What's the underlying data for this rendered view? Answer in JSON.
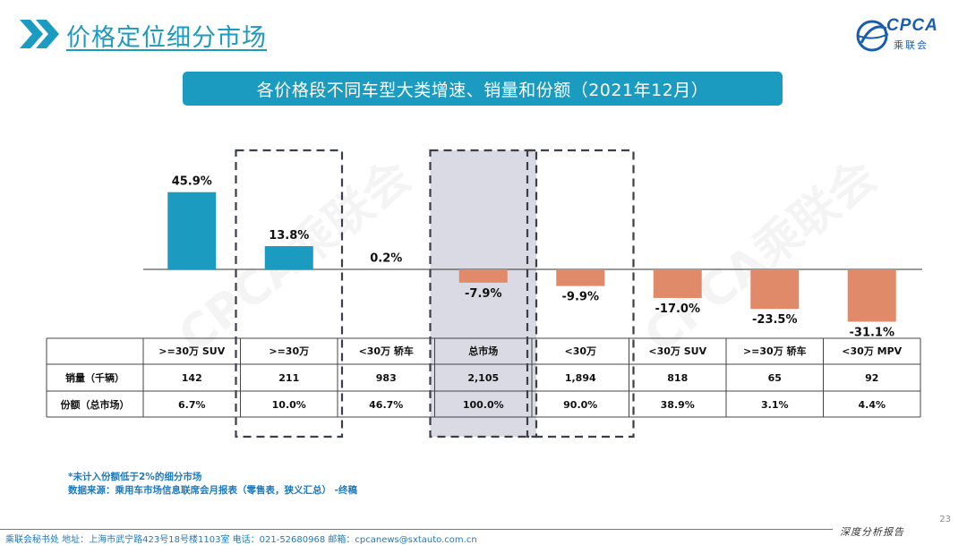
{
  "header": {
    "title": "价格定位细分市场",
    "logo_text": "CPCA",
    "logo_sub": "乘联会"
  },
  "banner": "各价格段不同车型大类增速、销量和份额（2021年12月）",
  "watermark": "CPCA乘联会",
  "chart_data": {
    "type": "bar",
    "title": "各价格段不同车型大类增速、销量和份额（2021年12月）",
    "categories": [
      ">=30万 SUV",
      ">=30万",
      "<30万 轿车",
      "总市场",
      "<30万",
      "<30万 SUV",
      ">=30万 轿车",
      "<30万 MPV"
    ],
    "values": [
      45.9,
      13.8,
      0.2,
      -7.9,
      -9.9,
      -17.0,
      -23.5,
      -31.1
    ],
    "value_labels": [
      "45.9%",
      "13.8%",
      "0.2%",
      "-7.9%",
      "-9.9%",
      "-17.0%",
      "-23.5%",
      "-31.1%"
    ],
    "unit": "%",
    "highlighted": [
      1,
      3,
      4
    ],
    "colors": {
      "positive": "#1a9bbf",
      "negative": "#e08a6a"
    },
    "table": {
      "headers": [
        ">=30万 SUV",
        ">=30万",
        "<30万 轿车",
        "总市场",
        "<30万",
        "<30万 SUV",
        ">=30万 轿车",
        "<30万 MPV"
      ],
      "rows": [
        {
          "label": "销量（千辆）",
          "cells": [
            "142",
            "211",
            "983",
            "2,105",
            "1,894",
            "818",
            "65",
            "92"
          ]
        },
        {
          "label": "份额（总市场）",
          "cells": [
            "6.7%",
            "10.0%",
            "46.7%",
            "100.0%",
            "90.0%",
            "38.9%",
            "3.1%",
            "4.4%"
          ]
        }
      ]
    }
  },
  "notes": {
    "line1": "*未计入份额低于2%的细分市场",
    "line2": "数据来源：乘用车市场信息联席会月报表（零售表，狭义汇总）  -终稿"
  },
  "footer": {
    "left": "乘联会秘书处   地址：上海市武宁路423号18号楼1103室   电话：021-52680968    邮箱：cpcanews@sxtauto.com.cn",
    "right": "深度分析报告",
    "page": "23"
  }
}
